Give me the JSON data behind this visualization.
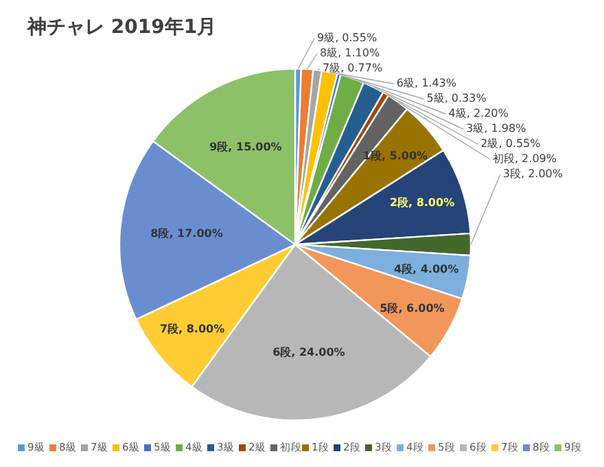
{
  "chart_data": {
    "type": "pie",
    "title": "神チャレ 2019年1月",
    "categories": [
      "9級",
      "8級",
      "7級",
      "6級",
      "5級",
      "4級",
      "3級",
      "2級",
      "初段",
      "1段",
      "2段",
      "3段",
      "4段",
      "5段",
      "6段",
      "7段",
      "8段",
      "9段"
    ],
    "values": [
      0.55,
      1.1,
      0.77,
      1.43,
      0.33,
      2.2,
      1.98,
      0.55,
      2.09,
      5.0,
      8.0,
      2.0,
      4.0,
      6.0,
      24.0,
      8.0,
      17.0,
      15.0
    ],
    "colors": [
      "#5b9bd5",
      "#ed7d31",
      "#a5a5a5",
      "#ffc000",
      "#4472c4",
      "#70ad47",
      "#255e91",
      "#9e480e",
      "#636363",
      "#997300",
      "#264478",
      "#43682b",
      "#7cafdd",
      "#f1975a",
      "#b7b7b7",
      "#ffcd33",
      "#698ed0",
      "#8cc168"
    ],
    "value_labels": [
      "9級, 0.55%",
      "8級, 1.10%",
      "7級, 0.77%",
      "6級, 1.43%",
      "5級, 0.33%",
      "4級, 2.20%",
      "3級, 1.98%",
      "2級, 0.55%",
      "初段, 2.09%",
      "1段, 5.00%",
      "2段, 8.00%",
      "3段, 2.00%",
      "4段, 4.00%",
      "5段, 6.00%",
      "6段, 24.00%",
      "7段, 8.00%",
      "8段, 17.00%",
      "9段, 15.00%"
    ],
    "legend": "bottom"
  }
}
